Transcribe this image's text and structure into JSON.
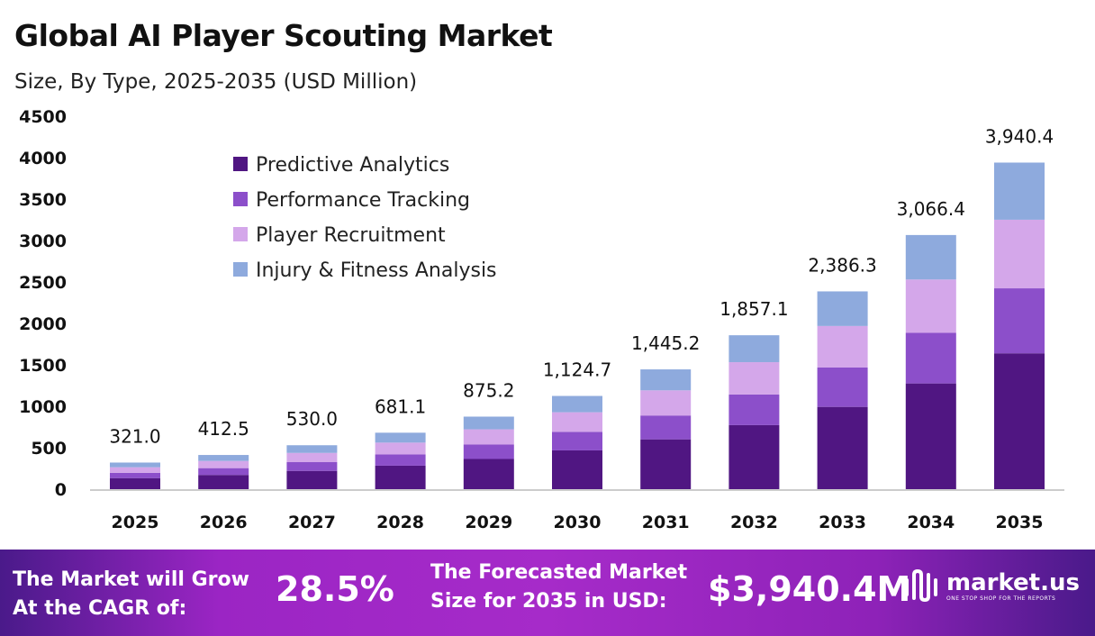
{
  "header": {
    "title": "Global AI Player Scouting Market",
    "subtitle": "Size, By Type, 2025-2035 (USD Million)"
  },
  "chart_data": {
    "type": "bar",
    "stacked": true,
    "categories": [
      "2025",
      "2026",
      "2027",
      "2028",
      "2029",
      "2030",
      "2031",
      "2032",
      "2033",
      "2034",
      "2035"
    ],
    "series": [
      {
        "name": "Predictive Analytics",
        "color": "#501682",
        "values": [
          133.5,
          171.6,
          220.5,
          283.3,
          364.1,
          467.9,
          601.2,
          772.6,
          992.7,
          1275.6,
          1639.2
        ]
      },
      {
        "name": "Performance Tracking",
        "color": "#8c4fca",
        "values": [
          63.9,
          82.1,
          105.5,
          135.5,
          174.2,
          223.8,
          287.6,
          369.6,
          474.9,
          610.2,
          784.1
        ]
      },
      {
        "name": "Player Recruitment",
        "color": "#d4a7ea",
        "values": [
          67.4,
          86.6,
          111.3,
          143.0,
          183.8,
          236.2,
          303.5,
          390.0,
          501.1,
          643.9,
          827.5
        ]
      },
      {
        "name": "Injury & Fitness Analysis",
        "color": "#8eaadd",
        "values": [
          56.2,
          72.2,
          92.7,
          119.3,
          153.1,
          196.8,
          252.9,
          324.9,
          417.6,
          536.7,
          689.6
        ]
      }
    ],
    "totals": [
      "321.0",
      "412.5",
      "530.0",
      "681.1",
      "875.2",
      "1,124.7",
      "1,445.2",
      "1,857.1",
      "2,386.3",
      "3,066.4",
      "3,940.4"
    ],
    "yticks": [
      "0",
      "500",
      "1000",
      "1500",
      "2000",
      "2500",
      "3000",
      "3500",
      "4000",
      "4500"
    ],
    "ylim": [
      0,
      4500
    ],
    "grid": false,
    "legend": "top-left"
  },
  "banner": {
    "cagr_label_1": "The Market will Grow",
    "cagr_label_2": "At the CAGR of:",
    "cagr_value": "28.5%",
    "forecast_label_1": "The Forecasted Market",
    "forecast_label_2": "Size for 2035 in USD:",
    "forecast_value": "$3,940.4M",
    "logo_name": "market.us",
    "logo_tagline": "ONE STOP SHOP FOR THE REPORTS"
  }
}
